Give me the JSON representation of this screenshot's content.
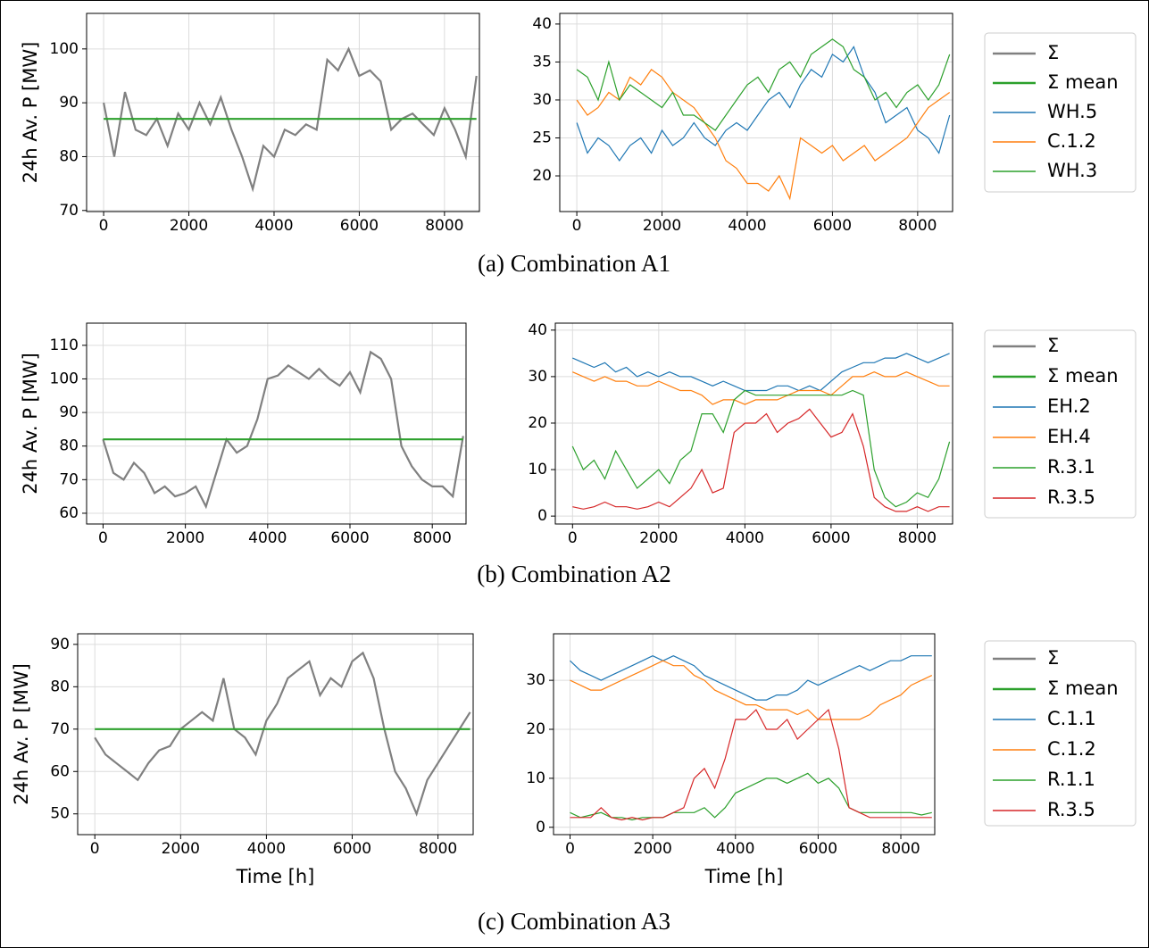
{
  "captions": [
    "(a) Combination A1",
    "(b) Combination A2",
    "(c) Combination A3"
  ],
  "chart_data": [
    {
      "type": "line",
      "ylabel": "24h Av. P [MW]",
      "grid": true,
      "x": [
        0,
        250,
        500,
        750,
        1000,
        1250,
        1500,
        1750,
        2000,
        2250,
        2500,
        2750,
        3000,
        3250,
        3500,
        3750,
        4000,
        4250,
        4500,
        4750,
        5000,
        5250,
        5500,
        5750,
        6000,
        6250,
        6500,
        6750,
        7000,
        7250,
        7500,
        7750,
        8000,
        8250,
        8500,
        8750
      ],
      "xlim": [
        -400,
        8820
      ],
      "xticks": [
        0,
        2000,
        4000,
        6000,
        8000
      ],
      "ylim": [
        69.8,
        106.6
      ],
      "yticks": [
        70,
        80,
        90,
        100
      ],
      "series": [
        {
          "name": "Σ",
          "color": "#808080",
          "values": [
            90,
            80,
            92,
            85,
            84,
            87,
            82,
            88,
            85,
            90,
            86,
            91,
            85,
            80,
            74,
            82,
            80,
            85,
            84,
            86,
            85,
            98,
            96,
            100,
            95,
            96,
            94,
            85,
            87,
            88,
            86,
            84,
            89,
            85,
            80,
            95
          ]
        },
        {
          "name": "Σ mean",
          "color": "#2ca02c",
          "x": [
            0,
            8750
          ],
          "values": [
            87,
            87
          ]
        }
      ]
    },
    {
      "type": "line",
      "grid": true,
      "x": [
        0,
        250,
        500,
        750,
        1000,
        1250,
        1500,
        1750,
        2000,
        2250,
        2500,
        2750,
        3000,
        3250,
        3500,
        3750,
        4000,
        4250,
        4500,
        4750,
        5000,
        5250,
        5500,
        5750,
        6000,
        6250,
        6500,
        6750,
        7000,
        7250,
        7500,
        7750,
        8000,
        8250,
        8500,
        8750
      ],
      "xlim": [
        -400,
        8820
      ],
      "xticks": [
        0,
        2000,
        4000,
        6000,
        8000
      ],
      "ylim": [
        15.3,
        41.4
      ],
      "yticks": [
        20,
        25,
        30,
        35,
        40
      ],
      "series": [
        {
          "name": "WH.5",
          "color": "#1f77b4",
          "values": [
            27,
            23,
            25,
            24,
            22,
            24,
            25,
            23,
            26,
            24,
            25,
            27,
            25,
            24,
            26,
            27,
            26,
            28,
            30,
            31,
            29,
            32,
            34,
            33,
            36,
            35,
            37,
            33,
            31,
            27,
            28,
            29,
            26,
            25,
            23,
            28
          ]
        },
        {
          "name": "C.1.2",
          "color": "#ff7f0e",
          "values": [
            30,
            28,
            29,
            31,
            30,
            33,
            32,
            34,
            33,
            31,
            30,
            29,
            27,
            25,
            22,
            21,
            19,
            19,
            18,
            20,
            17,
            25,
            24,
            23,
            24,
            22,
            23,
            24,
            22,
            23,
            24,
            25,
            27,
            29,
            30,
            31
          ]
        },
        {
          "name": "WH.3",
          "color": "#2ca02c",
          "values": [
            34,
            33,
            30,
            35,
            30,
            32,
            31,
            30,
            29,
            31,
            28,
            28,
            27,
            26,
            28,
            30,
            32,
            33,
            31,
            34,
            35,
            33,
            36,
            37,
            38,
            37,
            34,
            33,
            30,
            31,
            29,
            31,
            32,
            30,
            32,
            36
          ]
        }
      ]
    },
    {
      "type": "line",
      "ylabel": "24h Av. P [MW]",
      "grid": true,
      "x": [
        0,
        250,
        500,
        750,
        1000,
        1250,
        1500,
        1750,
        2000,
        2250,
        2500,
        2750,
        3000,
        3250,
        3500,
        3750,
        4000,
        4250,
        4500,
        4750,
        5000,
        5250,
        5500,
        5750,
        6000,
        6250,
        6500,
        6750,
        7000,
        7250,
        7500,
        7750,
        8000,
        8250,
        8500,
        8750
      ],
      "xlim": [
        -400,
        8820
      ],
      "xticks": [
        0,
        2000,
        4000,
        6000,
        8000
      ],
      "ylim": [
        56.8,
        116.6
      ],
      "yticks": [
        60,
        70,
        80,
        90,
        100,
        110
      ],
      "series": [
        {
          "name": "Σ",
          "color": "#808080",
          "values": [
            82,
            72,
            70,
            75,
            72,
            66,
            68,
            65,
            66,
            68,
            62,
            72,
            82,
            78,
            80,
            88,
            100,
            101,
            104,
            102,
            100,
            103,
            100,
            98,
            102,
            96,
            108,
            106,
            100,
            80,
            74,
            70,
            68,
            68,
            65,
            83
          ]
        },
        {
          "name": "Σ mean",
          "color": "#2ca02c",
          "x": [
            0,
            8750
          ],
          "values": [
            82,
            82
          ]
        }
      ]
    },
    {
      "type": "line",
      "grid": true,
      "x": [
        0,
        250,
        500,
        750,
        1000,
        1250,
        1500,
        1750,
        2000,
        2250,
        2500,
        2750,
        3000,
        3250,
        3500,
        3750,
        4000,
        4250,
        4500,
        4750,
        5000,
        5250,
        5500,
        5750,
        6000,
        6250,
        6500,
        6750,
        7000,
        7250,
        7500,
        7750,
        8000,
        8250,
        8500,
        8750
      ],
      "xlim": [
        -400,
        8820
      ],
      "xticks": [
        0,
        2000,
        4000,
        6000,
        8000
      ],
      "ylim": [
        -1.7,
        41.5
      ],
      "yticks": [
        0,
        10,
        20,
        30,
        40
      ],
      "series": [
        {
          "name": "EH.2",
          "color": "#1f77b4",
          "values": [
            34,
            33,
            32,
            33,
            31,
            32,
            30,
            31,
            30,
            31,
            30,
            30,
            29,
            28,
            29,
            28,
            27,
            27,
            27,
            28,
            28,
            27,
            28,
            27,
            29,
            31,
            32,
            33,
            33,
            34,
            34,
            35,
            34,
            33,
            34,
            35
          ]
        },
        {
          "name": "EH.4",
          "color": "#ff7f0e",
          "values": [
            31,
            30,
            29,
            30,
            29,
            29,
            28,
            28,
            29,
            28,
            27,
            27,
            26,
            24,
            25,
            25,
            24,
            25,
            25,
            25,
            26,
            27,
            27,
            27,
            26,
            28,
            30,
            30,
            31,
            30,
            30,
            31,
            30,
            29,
            28,
            28
          ]
        },
        {
          "name": "R.3.1",
          "color": "#2ca02c",
          "values": [
            15,
            10,
            12,
            8,
            14,
            10,
            6,
            8,
            10,
            7,
            12,
            14,
            22,
            22,
            18,
            25,
            27,
            26,
            26,
            26,
            26,
            26,
            26,
            26,
            26,
            26,
            27,
            26,
            10,
            4,
            2,
            3,
            5,
            4,
            8,
            16
          ]
        },
        {
          "name": "R.3.5",
          "color": "#d62728",
          "values": [
            2,
            1.5,
            2,
            3,
            2,
            2,
            1.5,
            2,
            3,
            2,
            4,
            6,
            10,
            5,
            6,
            18,
            20,
            20,
            22,
            18,
            20,
            21,
            23,
            20,
            17,
            18,
            22,
            15,
            4,
            2,
            1,
            1,
            2,
            1,
            2,
            2
          ]
        }
      ]
    },
    {
      "type": "line",
      "ylabel": "24h Av. P [MW]",
      "xlabel": "Time [h]",
      "grid": true,
      "x": [
        0,
        250,
        500,
        750,
        1000,
        1250,
        1500,
        1750,
        2000,
        2250,
        2500,
        2750,
        3000,
        3250,
        3500,
        3750,
        4000,
        4250,
        4500,
        4750,
        5000,
        5250,
        5500,
        5750,
        6000,
        6250,
        6500,
        6750,
        7000,
        7250,
        7500,
        7750,
        8000,
        8250,
        8500,
        8750
      ],
      "xlim": [
        -400,
        8820
      ],
      "xticks": [
        0,
        2000,
        4000,
        6000,
        8000
      ],
      "ylim": [
        45.1,
        92.5
      ],
      "yticks": [
        50,
        60,
        70,
        80,
        90
      ],
      "series": [
        {
          "name": "Σ",
          "color": "#808080",
          "values": [
            68,
            64,
            62,
            60,
            58,
            62,
            65,
            66,
            70,
            72,
            74,
            72,
            82,
            70,
            68,
            64,
            72,
            76,
            82,
            84,
            86,
            78,
            82,
            80,
            86,
            88,
            82,
            70,
            60,
            56,
            50,
            58,
            62,
            66,
            70,
            74
          ]
        },
        {
          "name": "Σ mean",
          "color": "#2ca02c",
          "x": [
            0,
            8750
          ],
          "values": [
            70,
            70
          ]
        }
      ]
    },
    {
      "type": "line",
      "xlabel": "Time [h]",
      "grid": true,
      "x": [
        0,
        250,
        500,
        750,
        1000,
        1250,
        1500,
        1750,
        2000,
        2250,
        2500,
        2750,
        3000,
        3250,
        3500,
        3750,
        4000,
        4250,
        4500,
        4750,
        5000,
        5250,
        5500,
        5750,
        6000,
        6250,
        6500,
        6750,
        7000,
        7250,
        7500,
        7750,
        8000,
        8250,
        8500,
        8750
      ],
      "xlim": [
        -400,
        8820
      ],
      "xticks": [
        0,
        2000,
        4000,
        6000,
        8000
      ],
      "ylim": [
        -1.5,
        39.5
      ],
      "yticks": [
        0,
        10,
        20,
        30
      ],
      "series": [
        {
          "name": "C.1.1",
          "color": "#1f77b4",
          "values": [
            34,
            32,
            31,
            30,
            31,
            32,
            33,
            34,
            35,
            34,
            35,
            34,
            33,
            31,
            30,
            29,
            28,
            27,
            26,
            26,
            27,
            27,
            28,
            30,
            29,
            30,
            31,
            32,
            33,
            32,
            33,
            34,
            34,
            35,
            35,
            35
          ]
        },
        {
          "name": "C.1.2",
          "color": "#ff7f0e",
          "values": [
            30,
            29,
            28,
            28,
            29,
            30,
            31,
            32,
            33,
            34,
            33,
            33,
            31,
            30,
            28,
            27,
            26,
            25,
            25,
            24,
            24,
            24,
            23,
            24,
            22,
            22,
            22,
            22,
            22,
            23,
            25,
            26,
            27,
            29,
            30,
            31
          ]
        },
        {
          "name": "R.1.1",
          "color": "#2ca02c",
          "values": [
            3,
            2,
            2.5,
            3,
            2,
            2,
            1.5,
            2,
            2,
            2,
            3,
            3,
            3,
            4,
            2,
            4,
            7,
            8,
            9,
            10,
            10,
            9,
            10,
            11,
            9,
            10,
            8,
            4,
            3,
            3,
            3,
            3,
            3,
            3,
            2.5,
            3
          ]
        },
        {
          "name": "R.3.5",
          "color": "#d62728",
          "values": [
            2,
            2,
            2,
            4,
            2,
            1.5,
            2,
            1.5,
            2,
            2,
            3,
            4,
            10,
            12,
            8,
            14,
            22,
            22,
            24,
            20,
            20,
            22,
            18,
            20,
            22,
            24,
            16,
            4,
            3,
            2,
            2,
            2,
            2,
            2,
            2,
            2
          ]
        }
      ]
    }
  ]
}
